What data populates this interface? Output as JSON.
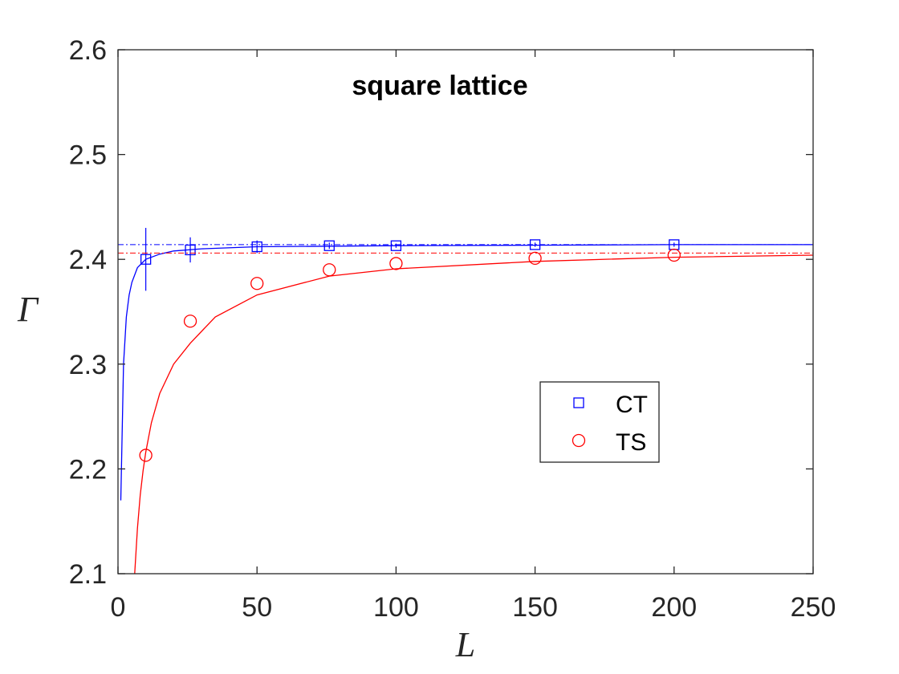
{
  "chart_data": {
    "type": "scatter",
    "title": "square lattice",
    "xlabel": "L",
    "ylabel": "Γ",
    "xlim": [
      0,
      250
    ],
    "ylim": [
      2.1,
      2.6
    ],
    "xticks": [
      0,
      50,
      100,
      150,
      200,
      250
    ],
    "yticks": [
      2.1,
      2.2,
      2.3,
      2.4,
      2.5,
      2.6
    ],
    "xtick_labels": [
      "0",
      "50",
      "100",
      "150",
      "200",
      "250"
    ],
    "ytick_labels": [
      "2.1",
      "2.2",
      "2.3",
      "2.4",
      "2.5",
      "2.6"
    ],
    "grid": false,
    "legend_position": "right",
    "series": [
      {
        "name": "CT",
        "marker": "square",
        "color": "#0000ff",
        "x": [
          10,
          26,
          50,
          76,
          100,
          150,
          200
        ],
        "y": [
          2.4,
          2.409,
          2.412,
          2.413,
          2.413,
          2.414,
          2.414
        ],
        "y_err": [
          0.03,
          0.012,
          0.006,
          0.003,
          0.002,
          0.002,
          0.002
        ],
        "fit_asymptote": 2.414,
        "fit_curve_x": [
          1,
          2,
          3,
          4,
          5,
          7,
          10,
          15,
          20,
          30,
          50,
          100,
          150,
          200,
          250
        ],
        "fit_curve_y": [
          2.17,
          2.3,
          2.345,
          2.366,
          2.378,
          2.392,
          2.4,
          2.405,
          2.408,
          2.41,
          2.412,
          2.413,
          2.4135,
          2.414,
          2.414
        ]
      },
      {
        "name": "TS",
        "marker": "circle",
        "color": "#ff0000",
        "x": [
          10,
          26,
          50,
          76,
          100,
          150,
          200
        ],
        "y": [
          2.213,
          2.341,
          2.377,
          2.39,
          2.396,
          2.401,
          2.404
        ],
        "fit_asymptote": 2.406,
        "fit_curve_x": [
          6,
          7,
          8,
          9,
          10,
          12,
          15,
          20,
          26,
          35,
          50,
          76,
          100,
          150,
          200,
          250
        ],
        "fit_curve_y": [
          2.1,
          2.143,
          2.175,
          2.198,
          2.216,
          2.244,
          2.272,
          2.3,
          2.32,
          2.345,
          2.366,
          2.384,
          2.391,
          2.398,
          2.402,
          2.404
        ]
      }
    ]
  }
}
